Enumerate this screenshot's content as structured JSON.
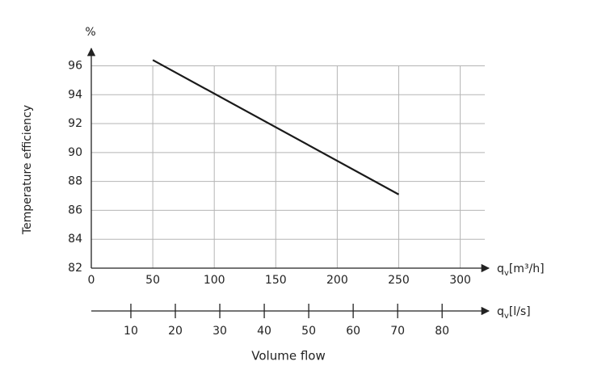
{
  "chart_data": {
    "type": "line",
    "y_unit": "%",
    "y_label": "Temperature efficiency",
    "x_label": "Volume flow",
    "x_unit": {
      "symbol": "q",
      "subscript": "v",
      "unit": "[m³/h]"
    },
    "x2_unit": {
      "symbol": "q",
      "subscript": "v",
      "unit": "[l/s]"
    },
    "xlim": [
      0,
      320
    ],
    "xticks": [
      0,
      50,
      100,
      150,
      200,
      250,
      300
    ],
    "ylim": [
      82,
      97.2
    ],
    "yticks": [
      82,
      84,
      86,
      88,
      90,
      92,
      94,
      96
    ],
    "x2lim": [
      1.1,
      89.6
    ],
    "x2ticks": [
      10,
      20,
      30,
      40,
      50,
      60,
      70,
      80
    ],
    "grid": true,
    "x": [
      50,
      250
    ],
    "series": [
      {
        "color": "#1a1a1a",
        "values": [
          96.4,
          87.1
        ]
      }
    ]
  }
}
